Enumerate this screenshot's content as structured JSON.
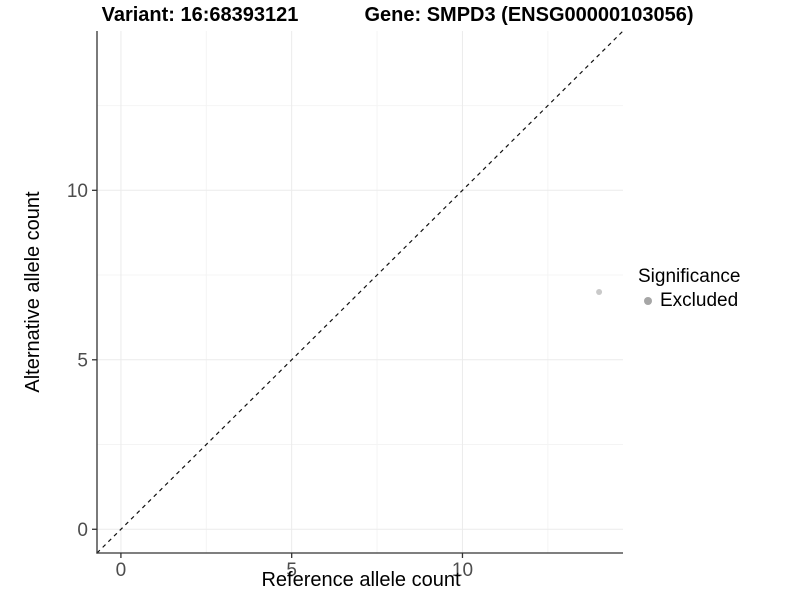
{
  "titles": {
    "variant": "Variant: 16:68393121",
    "gene": "Gene: SMPD3 (ENSG00000103056)"
  },
  "legend": {
    "title": "Significance",
    "items": [
      {
        "label": "Excluded",
        "color": "#a6a6a6"
      }
    ]
  },
  "colors": {
    "axis_line": "#333333",
    "tick_mark": "#333333",
    "tick_label": "#4d4d4d",
    "grid_major": "#ebebeb",
    "grid_minor": "#f4f4f4",
    "reference_line": "#111111",
    "point": "#c9c9c9"
  },
  "chart_data": {
    "type": "scatter",
    "title": "Variant: 16:68393121 — Gene: SMPD3 (ENSG00000103056)",
    "xlabel": "Reference allele count",
    "ylabel": "Alternative allele count",
    "xlim": [
      -0.7,
      14.7
    ],
    "ylim": [
      -0.7,
      14.7
    ],
    "x_ticks": [
      0,
      5,
      10
    ],
    "y_ticks": [
      0,
      5,
      10
    ],
    "x_minor_gridlines": [
      2.5,
      7.5,
      12.5
    ],
    "y_minor_gridlines": [
      2.5,
      7.5,
      12.5
    ],
    "grid": true,
    "legend_position": "right",
    "series": [
      {
        "name": "Excluded",
        "points": [
          {
            "x": 14,
            "y": 7
          }
        ]
      }
    ],
    "reference_line": {
      "kind": "identity",
      "slope": 1,
      "intercept": 0,
      "style": "dashed"
    }
  }
}
